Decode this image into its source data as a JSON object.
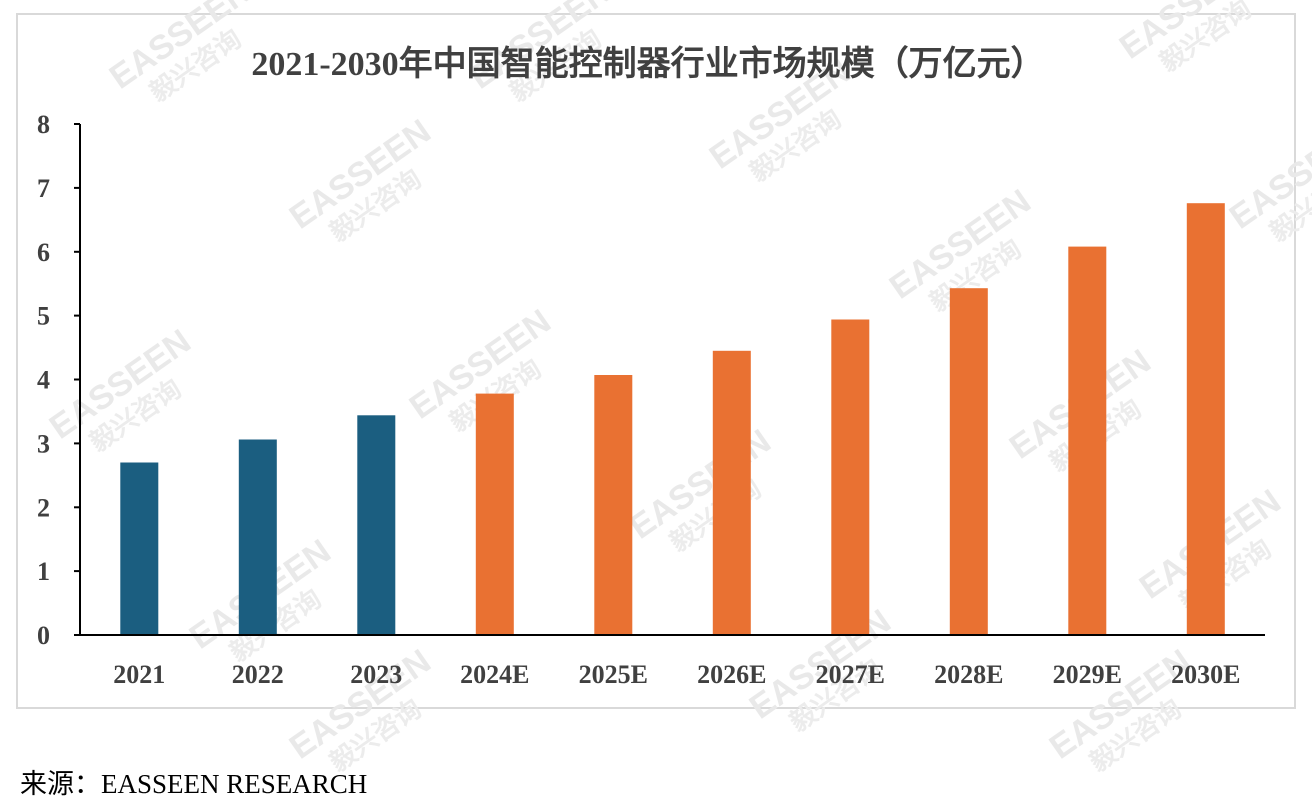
{
  "chart_data": {
    "type": "bar",
    "title": "2021-2030年中国智能控制器行业市场规模（万亿元）",
    "categories": [
      "2021",
      "2022",
      "2023",
      "2024E",
      "2025E",
      "2026E",
      "2027E",
      "2028E",
      "2029E",
      "2030E"
    ],
    "values": [
      2.7,
      3.06,
      3.44,
      3.78,
      4.07,
      4.45,
      4.94,
      5.43,
      6.08,
      6.76
    ],
    "bar_colors": [
      "#1b5e80",
      "#1b5e80",
      "#1b5e80",
      "#e97132",
      "#e97132",
      "#e97132",
      "#e97132",
      "#e97132",
      "#e97132",
      "#e97132"
    ],
    "ylim": [
      0,
      8
    ],
    "yticks": [
      "0",
      "1",
      "2",
      "3",
      "4",
      "5",
      "6",
      "7",
      "8"
    ],
    "xlabel": "",
    "ylabel": "",
    "grid": false,
    "legend": "none"
  },
  "colors": {
    "actual": "#1b5e80",
    "forecast": "#e97132",
    "axis": "#000000",
    "text": "#404040",
    "frame": "#d9d9d9"
  },
  "watermark": {
    "brand": "EASSEEN",
    "cn": "毅兴咨询"
  },
  "source": {
    "prefix": "来源：",
    "name": "EASSEEN RESEARCH"
  }
}
